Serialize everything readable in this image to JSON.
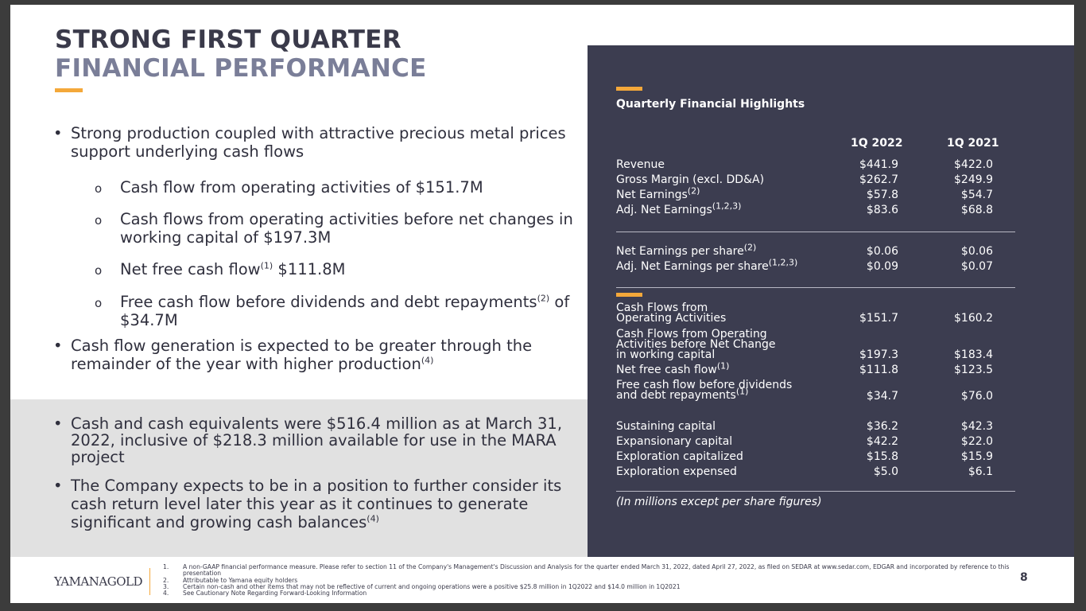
{
  "title": {
    "line1": "STRONG FIRST QUARTER",
    "line2": "FINANCIAL PERFORMANCE"
  },
  "bullets_top": [
    {
      "text": "Strong production coupled with attractive precious metal prices support underlying cash flows"
    },
    {
      "text": "Cash flow from operating activities of $151.7M"
    },
    {
      "text": "Cash flows from operating activities before net changes in working capital of $197.3M"
    },
    {
      "text_pre": "Net free cash flow",
      "sup": "(1)",
      "text_post": " $111.8M"
    },
    {
      "text_pre": "Free cash flow before dividends and debt repayments",
      "sup": "(2)",
      "text_post": " of $34.7M"
    },
    {
      "text_pre": "Cash flow generation is expected to be greater through the remainder of the year with higher production",
      "sup": "(4)"
    }
  ],
  "bullets_bottom": [
    {
      "text": "Cash and cash equivalents were $516.4 million as at March 31, 2022, inclusive of $218.3 million available for use in the MARA project"
    },
    {
      "text_pre": "The Company expects to be in a position to further consider its cash return level later this year as it continues to generate significant and growing cash balances",
      "sup": "(4)"
    }
  ],
  "symbols": {
    "bullet": "•",
    "sub_bullet": "o"
  },
  "panel": {
    "heading": "Quarterly Financial Highlights",
    "col1": "1Q 2022",
    "col2": "1Q 2021",
    "rows": [
      {
        "label": "Revenue",
        "v1": "$441.9",
        "v2": "$422.0"
      },
      {
        "label": "Gross Margin (excl. DD&A)",
        "v1": "$262.7",
        "v2": "$249.9"
      },
      {
        "label": "Net Earnings",
        "sup": "(2)",
        "v1": "$57.8",
        "v2": "$54.7"
      },
      {
        "label": "Adj. Net Earnings",
        "sup": "(1,2,3)",
        "v1": "$83.6",
        "v2": "$68.8"
      },
      {
        "label": "Net Earnings per share",
        "sup": "(2)",
        "v1": "$0.06",
        "v2": "$0.06"
      },
      {
        "label": "Adj. Net Earnings per share",
        "sup": "(1,2,3)",
        "v1": "$0.09",
        "v2": "$0.07"
      },
      {
        "label_l1": "Cash Flows from",
        "label_l2": "Operating Activities",
        "v1": "$151.7",
        "v2": "$160.2"
      },
      {
        "label_l1": "Cash Flows from Operating",
        "label_l2": "Activities before Net Change",
        "label_l3": "in working capital",
        "v1": "$197.3",
        "v2": "$183.4"
      },
      {
        "label": "Net free cash flow",
        "sup": "(1)",
        "v1": "$111.8",
        "v2": "$123.5"
      },
      {
        "label_l1": "Free cash flow before dividends",
        "label_l2": "and debt repayments",
        "sup": "(1)",
        "v1": "$34.7",
        "v2": "$76.0"
      },
      {
        "label": "Sustaining capital",
        "v1": "$36.2",
        "v2": "$42.3"
      },
      {
        "label": "Expansionary capital",
        "v1": "$42.2",
        "v2": "$22.0"
      },
      {
        "label": "Exploration capitalized",
        "v1": "$15.8",
        "v2": "$15.9"
      },
      {
        "label": "Exploration expensed",
        "v1": "$5.0",
        "v2": "$6.1"
      }
    ],
    "note": "(In millions except per share figures)"
  },
  "footer": {
    "logo_a": "YAMANA",
    "logo_b": "GOLD",
    "footnotes": [
      {
        "n": "1.",
        "text": "A non-GAAP financial performance measure. Please refer to section 11 of the Company's Management's Discussion and Analysis for the quarter ended March 31, 2022, dated April 27, 2022, as filed on SEDAR at www.sedar.com, EDGAR and incorporated by reference to this presentation"
      },
      {
        "n": "2.",
        "text": "Attributable to Yamana equity holders"
      },
      {
        "n": "3.",
        "text": "Certain non-cash and other items that may not be reflective of current and ongoing operations were a positive $25.8 million in 1Q2022 and $14.0 million in 1Q2021"
      },
      {
        "n": "4.",
        "text": "See Cautionary Note Regarding Forward-Looking Information"
      }
    ],
    "page": "8"
  },
  "colors": {
    "accent": "#f4a83a",
    "panel": "#3c3d50",
    "title_dark": "#3a3a4a",
    "title_light": "#7a7e98",
    "gray_box": "#e1e1e1"
  }
}
